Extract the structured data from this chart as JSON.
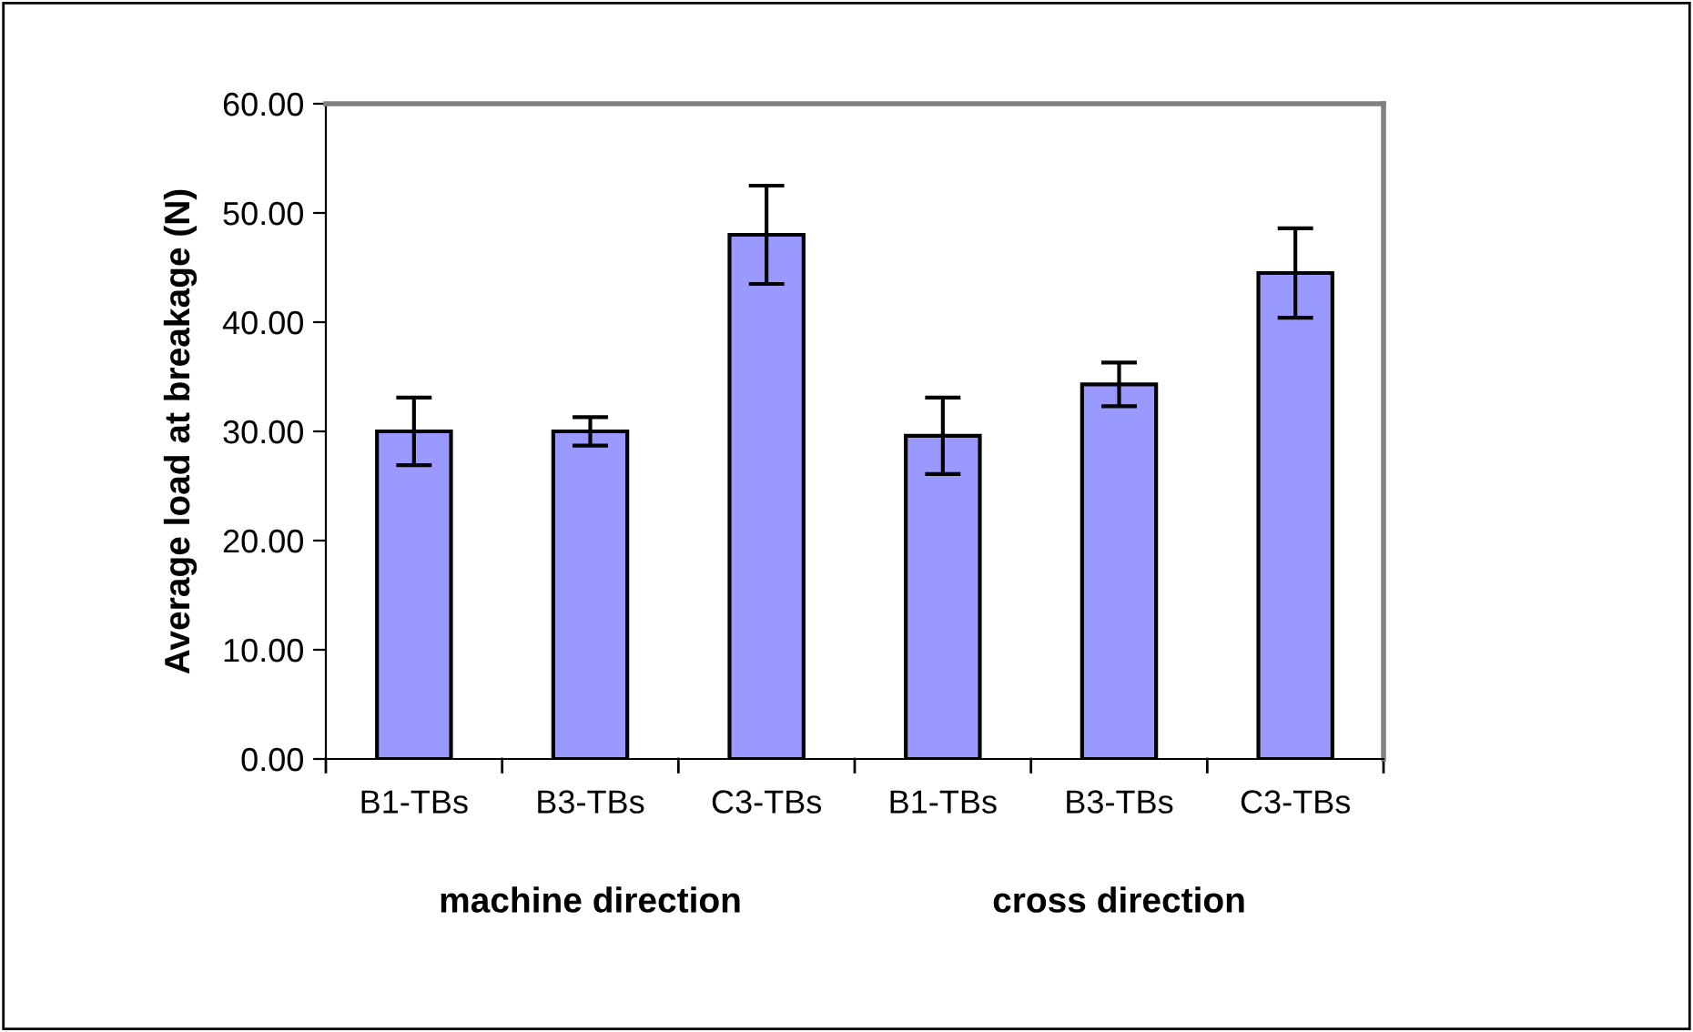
{
  "chart_data": {
    "type": "bar",
    "ylabel": "Average load at breakage (N)",
    "categories": [
      "B1-TBs",
      "B3-TBs",
      "C3-TBs",
      "B1-TBs",
      "B3-TBs",
      "C3-TBs"
    ],
    "values": [
      30.0,
      30.0,
      48.0,
      29.6,
      34.3,
      44.5
    ],
    "errors": [
      3.1,
      1.3,
      4.5,
      3.5,
      2.0,
      4.1
    ],
    "color": "#9999ff",
    "ylim": [
      0,
      60
    ],
    "yticks": [
      {
        "value": 0,
        "label": "0.00"
      },
      {
        "value": 10,
        "label": "10.00"
      },
      {
        "value": 20,
        "label": "20.00"
      },
      {
        "value": 30,
        "label": "30.00"
      },
      {
        "value": 40,
        "label": "40.00"
      },
      {
        "value": 50,
        "label": "50.00"
      },
      {
        "value": 60,
        "label": "60.00"
      }
    ],
    "annotations": [
      "machine direction",
      "cross direction"
    ],
    "grid": false,
    "legend": false
  }
}
